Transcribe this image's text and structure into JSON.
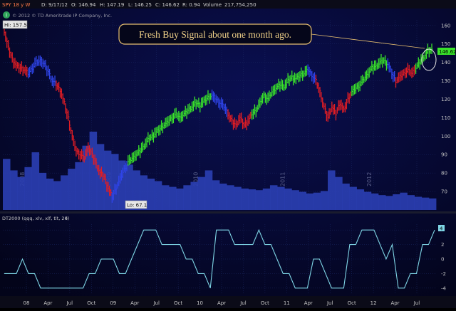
{
  "header": {
    "symbol": "SPY 18 y W",
    "date": "D: 9/17/12",
    "open": "O: 146.94",
    "high": "H: 147.19",
    "low": "L: 146.25",
    "close": "C: 146.62",
    "range": "R: 0.94",
    "volume": "Volume",
    "volume_value": "217,754,250"
  },
  "copyright": "© 2012 © TD Ameritrade IP Company, Inc.",
  "annotation": "Fresh Buy Signal about one month ago.",
  "labels": {
    "hi": "Hi: 157.52",
    "lo": "Lo: 67.1",
    "last_price": "146.62",
    "indicator_value": "4"
  },
  "indicator_header": {
    "name": "DT2000 (qqq, xlv, xlf, tlt, 20)",
    "value": "4"
  },
  "year_watermarks": [
    "2008",
    "2009",
    "2010",
    "2011",
    "2012"
  ],
  "colors": {
    "background": "#05061a",
    "up": "#39e32a",
    "down": "#e21d24",
    "neutral": "#2f44e8",
    "volume": "#2b3fb4",
    "indicator_line": "#7fd6e6",
    "annotation_border": "#e8c070",
    "text": "#c8c8c8"
  },
  "chart_data": [
    {
      "type": "ohlc",
      "title": "SPY 18 y W",
      "yaxis_ticks": [
        70,
        80,
        90,
        100,
        110,
        120,
        130,
        140,
        150,
        160
      ],
      "ylim": [
        60,
        163
      ],
      "xaxis_ticks": [
        "08",
        "Apr",
        "Jul",
        "Oct",
        "09",
        "Apr",
        "Jul",
        "Oct",
        "10",
        "Apr",
        "Jul",
        "Oct",
        "11",
        "Apr",
        "Jul",
        "Oct",
        "12",
        "Apr",
        "Jul"
      ],
      "high": 157.52,
      "low": 67.1,
      "last": 146.62,
      "segments": [
        {
          "color": "down",
          "points": [
            157,
            148,
            142,
            138,
            137,
            136,
            134
          ]
        },
        {
          "color": "neutral",
          "points": [
            134,
            137,
            140,
            141,
            139,
            135,
            130,
            128
          ]
        },
        {
          "color": "down",
          "points": [
            128,
            125,
            118,
            110,
            100,
            92,
            90,
            88,
            94,
            90,
            85,
            80,
            78,
            72,
            67
          ]
        },
        {
          "color": "neutral",
          "points": [
            67,
            72,
            77,
            82,
            86
          ]
        },
        {
          "color": "up",
          "points": [
            86,
            88,
            90,
            92,
            95,
            98,
            100,
            102,
            104,
            106,
            108,
            110,
            112,
            110,
            112,
            114,
            116,
            118,
            117,
            119,
            121,
            122
          ]
        },
        {
          "color": "neutral",
          "points": [
            122,
            120,
            118,
            116,
            112
          ]
        },
        {
          "color": "down",
          "points": [
            112,
            108,
            106,
            110,
            106,
            108,
            112
          ]
        },
        {
          "color": "up",
          "points": [
            112,
            114,
            118,
            122,
            120,
            124,
            126,
            128,
            127,
            130,
            132,
            131,
            133,
            134,
            136
          ]
        },
        {
          "color": "neutral",
          "points": [
            136,
            133,
            130
          ]
        },
        {
          "color": "down",
          "points": [
            130,
            124,
            116,
            110,
            116,
            112,
            118,
            114,
            120,
            124
          ]
        },
        {
          "color": "up",
          "points": [
            124,
            126,
            128,
            131,
            134,
            137,
            138,
            140,
            141,
            139
          ]
        },
        {
          "color": "neutral",
          "points": [
            139,
            134,
            130
          ]
        },
        {
          "color": "down",
          "points": [
            130,
            132,
            134,
            136,
            134,
            137
          ]
        },
        {
          "color": "up",
          "points": [
            137,
            140,
            143,
            146,
            146.62
          ]
        }
      ],
      "volume": [
        62,
        48,
        40,
        52,
        70,
        45,
        38,
        35,
        42,
        50,
        58,
        78,
        95,
        80,
        72,
        68,
        60,
        55,
        48,
        42,
        38,
        35,
        30,
        28,
        26,
        30,
        34,
        40,
        48,
        36,
        32,
        30,
        28,
        26,
        25,
        24,
        26,
        30,
        28,
        26,
        24,
        22,
        20,
        21,
        23,
        48,
        40,
        32,
        28,
        25,
        22,
        20,
        18,
        17,
        19,
        21,
        18,
        16,
        15,
        14
      ]
    },
    {
      "type": "line",
      "title": "DT2000 (qqq, xlv, xlf, tlt, 20)",
      "yaxis_ticks": [
        -4,
        -2,
        0,
        2,
        4
      ],
      "ylim": [
        -4.8,
        4.8
      ],
      "values": [
        -2,
        -2,
        -2,
        0,
        -2,
        -2,
        -4,
        -4,
        -4,
        -4,
        -4,
        -4,
        -4,
        -4,
        -2,
        -2,
        0,
        0,
        0,
        -2,
        -2,
        0,
        2,
        4,
        4,
        4,
        2,
        2,
        2,
        2,
        0,
        0,
        -2,
        -2,
        -4,
        4,
        4,
        4,
        2,
        2,
        2,
        2,
        4,
        2,
        2,
        0,
        -2,
        -2,
        -4,
        -4,
        -4,
        0,
        0,
        -2,
        -4,
        -4,
        -4,
        2,
        2,
        4,
        4,
        4,
        2,
        0,
        2,
        -4,
        -4,
        -2,
        -2,
        2,
        2,
        4
      ]
    }
  ]
}
